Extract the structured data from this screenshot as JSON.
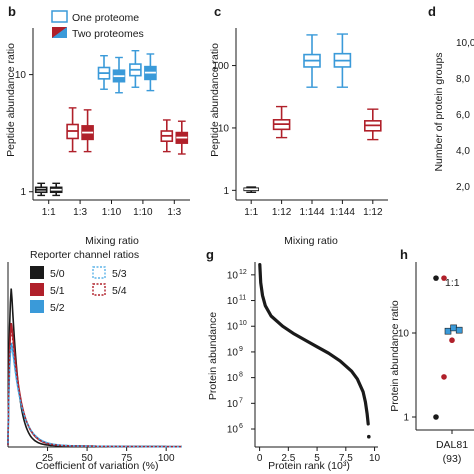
{
  "colors": {
    "black": "#1a1a1a",
    "red": "#b0202a",
    "blue": "#3a9ad9",
    "lightblue": "#5db4e8"
  },
  "chart_data": [
    {
      "panel": "b",
      "type": "box",
      "ylabel": "Peptide abundance ratio",
      "xlabel": "Mixing ratio",
      "yscale": "log",
      "ylim": [
        0.85,
        25
      ],
      "yticks": [
        {
          "v": 1,
          "label": "1"
        },
        {
          "v": 10,
          "label": "10"
        }
      ],
      "legend": [
        "One proteome",
        "Two proteomes"
      ],
      "categories": [
        "1:1",
        "1:3",
        "1:10",
        "1:10",
        "1:3"
      ],
      "groups": [
        {
          "color": "black",
          "boxes": [
            {
              "kind": "one",
              "whislo": 0.93,
              "q1": 0.99,
              "med": 1.04,
              "q3": 1.09,
              "whishi": 1.18
            },
            {
              "kind": "two",
              "whislo": 0.93,
              "q1": 0.99,
              "med": 1.04,
              "q3": 1.09,
              "whishi": 1.18
            }
          ]
        },
        {
          "color": "red",
          "boxes": [
            {
              "kind": "one",
              "whislo": 2.2,
              "q1": 2.85,
              "med": 3.3,
              "q3": 3.75,
              "whishi": 5.2
            },
            {
              "kind": "two",
              "whislo": 2.2,
              "q1": 2.8,
              "med": 3.2,
              "q3": 3.65,
              "whishi": 5.0
            }
          ]
        },
        {
          "color": "blue",
          "boxes": [
            {
              "kind": "one",
              "whislo": 7.5,
              "q1": 9.2,
              "med": 10.3,
              "q3": 11.5,
              "whishi": 14.5
            },
            {
              "kind": "two",
              "whislo": 7.0,
              "q1": 8.7,
              "med": 9.7,
              "q3": 10.9,
              "whishi": 14.0
            }
          ]
        },
        {
          "color": "blue",
          "boxes": [
            {
              "kind": "one",
              "whislo": 7.8,
              "q1": 9.8,
              "med": 11.0,
              "q3": 12.3,
              "whishi": 16.0
            },
            {
              "kind": "two",
              "whislo": 7.3,
              "q1": 9.1,
              "med": 10.4,
              "q3": 11.7,
              "whishi": 15.0
            }
          ]
        },
        {
          "color": "red",
          "boxes": [
            {
              "kind": "one",
              "whislo": 2.2,
              "q1": 2.7,
              "med": 3.0,
              "q3": 3.3,
              "whishi": 4.1
            },
            {
              "kind": "two",
              "whislo": 2.1,
              "q1": 2.6,
              "med": 2.9,
              "q3": 3.2,
              "whishi": 4.0
            }
          ]
        }
      ]
    },
    {
      "panel": "c",
      "type": "box",
      "ylabel": "Peptide abundance ratio",
      "xlabel": "Mixing ratio",
      "yscale": "log",
      "ylim": [
        0.7,
        400
      ],
      "yticks": [
        {
          "v": 1,
          "label": "1"
        },
        {
          "v": 10,
          "label": "10"
        },
        {
          "v": 100,
          "label": "100"
        }
      ],
      "categories": [
        "1:1",
        "1:12",
        "1:144",
        "1:144",
        "1:12"
      ],
      "boxes": [
        {
          "color": "black",
          "whislo": 0.93,
          "q1": 1.0,
          "med": 1.04,
          "q3": 1.08,
          "whishi": 1.13
        },
        {
          "color": "red",
          "whislo": 7.0,
          "q1": 9.5,
          "med": 11.5,
          "q3": 13.5,
          "whishi": 22.0
        },
        {
          "color": "blue",
          "whislo": 45,
          "q1": 95,
          "med": 120,
          "q3": 150,
          "whishi": 310
        },
        {
          "color": "blue",
          "whislo": 45,
          "q1": 95,
          "med": 120,
          "q3": 155,
          "whishi": 320
        },
        {
          "color": "red",
          "whislo": 6.5,
          "q1": 9.0,
          "med": 11.0,
          "q3": 13.0,
          "whishi": 20.0
        }
      ]
    },
    {
      "panel": "d",
      "type": "bar",
      "ylabel": "Number of protein groups",
      "yticks": [
        "10,0",
        "8,0",
        "6,0",
        "4,0",
        "2,0"
      ]
    },
    {
      "panel": "",
      "type": "density",
      "xlabel": "Coefficient of variation (%)",
      "xlim": [
        0,
        110
      ],
      "xticks": [
        {
          "v": 25,
          "label": "25"
        },
        {
          "v": 50,
          "label": "50"
        },
        {
          "v": 75,
          "label": "75"
        },
        {
          "v": 100,
          "label": "100"
        }
      ],
      "ylim": [
        0,
        1.0
      ],
      "legend_title": "Reporter channel ratios",
      "legend": [
        {
          "label": "5/0",
          "color": "black",
          "style": "solid"
        },
        {
          "label": "5/1",
          "color": "red",
          "style": "solid"
        },
        {
          "label": "5/2",
          "color": "blue",
          "style": "solid"
        },
        {
          "label": "5/3",
          "color": "lightblue",
          "style": "dotted"
        },
        {
          "label": "5/4",
          "color": "red",
          "style": "dotted"
        }
      ],
      "series": [
        {
          "color": "black",
          "peak": 0.95,
          "width": 4.2
        },
        {
          "color": "red",
          "peak": 0.74,
          "width": 5.6
        },
        {
          "color": "blue",
          "peak": 0.62,
          "width": 6.2
        },
        {
          "color": "lightblue",
          "peak": 0.6,
          "width": 6.4,
          "dotted": true
        },
        {
          "color": "red",
          "peak": 0.7,
          "width": 5.8,
          "dotted": true
        }
      ]
    },
    {
      "panel": "g",
      "type": "scatter",
      "ylabel": "Protein abundance",
      "xlabel": "Protein rank (10³)",
      "xlim": [
        -0.4,
        10.3
      ],
      "xticks": [
        {
          "v": 0,
          "label": "0"
        },
        {
          "v": 2.5,
          "label": "2.5"
        },
        {
          "v": 5,
          "label": "5"
        },
        {
          "v": 7.5,
          "label": "7.5"
        },
        {
          "v": 10,
          "label": "10"
        }
      ],
      "yscale": "log",
      "ylim": [
        5.3,
        12.5
      ],
      "yticks": [
        {
          "v": 6,
          "base": "10",
          "exp": "6"
        },
        {
          "v": 7,
          "base": "10",
          "exp": "7"
        },
        {
          "v": 8,
          "base": "10",
          "exp": "8"
        },
        {
          "v": 9,
          "base": "10",
          "exp": "9"
        },
        {
          "v": 10,
          "base": "10",
          "exp": "10"
        },
        {
          "v": 11,
          "base": "10",
          "exp": "11"
        },
        {
          "v": 12,
          "base": "10",
          "exp": "12"
        }
      ],
      "curve": {
        "x": [
          0.02,
          0.1,
          0.25,
          0.5,
          1.0,
          2.0,
          3.0,
          4.0,
          5.0,
          6.0,
          7.0,
          8.0,
          8.5,
          9.0,
          9.2,
          9.35,
          9.45
        ],
        "y": [
          12.4,
          11.7,
          11.2,
          10.8,
          10.4,
          10.0,
          9.7,
          9.45,
          9.2,
          8.95,
          8.65,
          8.25,
          7.95,
          7.45,
          7.05,
          6.6,
          6.2
        ]
      },
      "outliers": {
        "x": [
          9.5
        ],
        "y": [
          5.7
        ]
      }
    },
    {
      "panel": "h",
      "type": "scatter",
      "ylabel": "Protein abundance ratio",
      "category": "DAL81",
      "category_n": "(93)",
      "yscale": "log",
      "ylim": [
        0.7,
        70
      ],
      "yticks": [
        {
          "v": 1,
          "label": "1"
        },
        {
          "v": 10,
          "label": "10"
        }
      ],
      "annotation": "1:1",
      "points": [
        {
          "x": 0,
          "y": 45,
          "color": "black"
        },
        {
          "x": 1,
          "y": 45,
          "color": "red"
        },
        {
          "x": 0,
          "y": 1.0,
          "color": "black"
        },
        {
          "x": 1,
          "y": 3.0,
          "color": "red"
        },
        {
          "x": 1.5,
          "y": 10.5,
          "color": "blue"
        },
        {
          "x": 2.2,
          "y": 11.5,
          "color": "blue"
        },
        {
          "x": 2.9,
          "y": 10.8,
          "color": "blue"
        },
        {
          "x": 2.0,
          "y": 8.2,
          "color": "red"
        }
      ]
    }
  ]
}
